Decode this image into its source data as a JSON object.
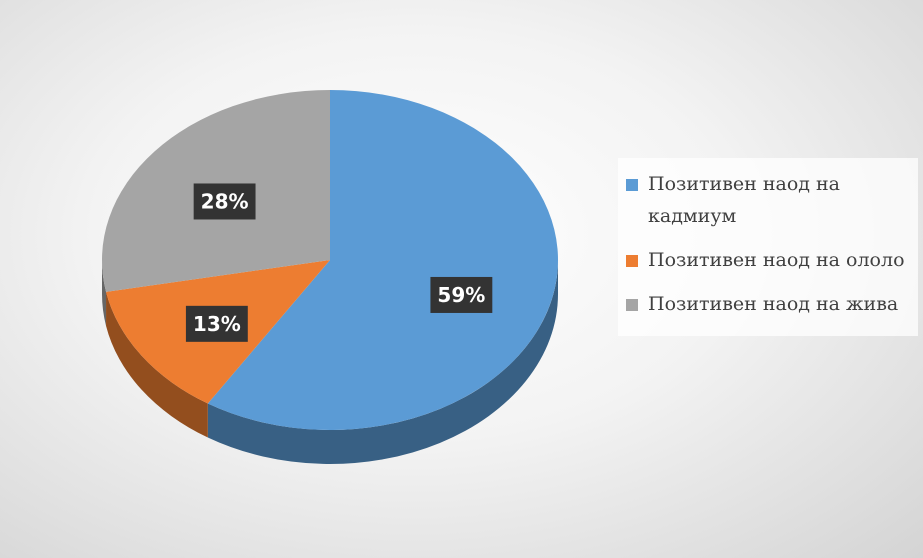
{
  "chart_data": {
    "type": "pie",
    "categories": [
      "Позитивен наод на кадмиум",
      "Позитивен наод на ололо",
      "Позитивен наод на жива"
    ],
    "values": [
      59,
      13,
      28
    ],
    "value_labels": [
      "59%",
      "13%",
      "28%"
    ],
    "colors": [
      "#5b9bd5",
      "#ed7d31",
      "#a5a5a5"
    ],
    "legend": "right"
  }
}
